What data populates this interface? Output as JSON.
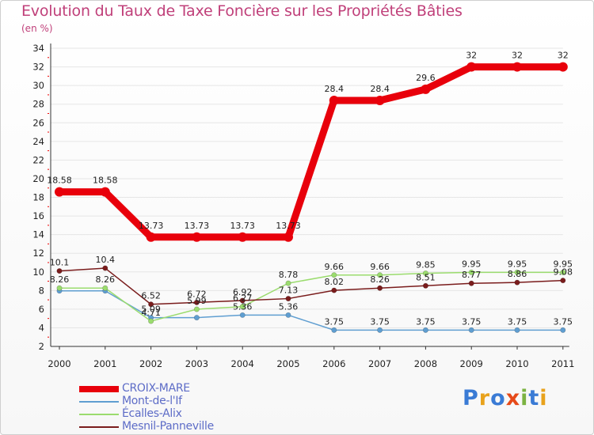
{
  "title": "Evolution du Taux de Taxe Foncière sur les Propriétés Bâties",
  "unit_label": "(en %)",
  "logo": {
    "text": "Proxiti",
    "letters": [
      {
        "ch": "P",
        "color": "#3a7bd5"
      },
      {
        "ch": "r",
        "color": "#e8a21c"
      },
      {
        "ch": "o",
        "color": "#3a7bd5"
      },
      {
        "ch": "x",
        "color": "#e64a19"
      },
      {
        "ch": "i",
        "color": "#7cb342"
      },
      {
        "ch": "t",
        "color": "#3a7bd5"
      },
      {
        "ch": "i",
        "color": "#e8a21c"
      }
    ]
  },
  "chart_data": {
    "type": "line",
    "title": "Evolution du Taux de Taxe Foncière sur les Propriétés Bâties",
    "ylabel": "(en %)",
    "xlabel": "",
    "ylim": [
      2,
      34
    ],
    "yticks": [
      "2",
      "4",
      "6",
      "8",
      "10",
      "12",
      "14",
      "16",
      "18",
      "20",
      "22",
      "24",
      "26",
      "28",
      "30",
      "32",
      "34"
    ],
    "categories": [
      "2000",
      "2001",
      "2002",
      "2003",
      "2004",
      "2005",
      "2006",
      "2007",
      "2008",
      "2009",
      "2010",
      "2011"
    ],
    "grid": "horizontal",
    "legend_position": "bottom-left",
    "series": [
      {
        "name": "CROIX-MARE",
        "color": "#e8000b",
        "values": [
          18.58,
          18.58,
          13.73,
          13.73,
          13.73,
          13.73,
          28.4,
          28.4,
          29.6,
          32,
          32,
          32
        ],
        "labels": [
          "18.58",
          "18.58",
          "13.73",
          "13.73",
          "13.73",
          "13.73",
          "28.4",
          "28.4",
          "29.6",
          "32",
          "32",
          "32"
        ]
      },
      {
        "name": "Mont-de-l'If",
        "color": "#5f9ed1",
        "values": [
          7.96,
          7.96,
          5.09,
          5.09,
          5.36,
          5.36,
          3.75,
          3.75,
          3.75,
          3.75,
          3.75,
          3.75
        ],
        "labels": [
          "",
          "",
          "5.09",
          "",
          "5.36",
          "5.36",
          "3.75",
          "3.75",
          "3.75",
          "3.75",
          "3.75",
          "3.75"
        ]
      },
      {
        "name": "Écalles-Alix",
        "color": "#9bdc6e",
        "values": [
          8.26,
          8.26,
          4.71,
          5.99,
          6.27,
          8.78,
          9.66,
          9.66,
          9.85,
          9.95,
          9.95,
          9.95
        ],
        "labels": [
          "8.26",
          "8.26",
          "4.71",
          "5.99",
          "6.27",
          "8.78",
          "9.66",
          "9.66",
          "9.85",
          "9.95",
          "9.95",
          "9.95"
        ]
      },
      {
        "name": "Mesnil-Panneville",
        "color": "#7a1c1c",
        "values": [
          10.1,
          10.4,
          6.52,
          6.72,
          6.92,
          7.13,
          8.02,
          8.26,
          8.51,
          8.77,
          8.86,
          9.08
        ],
        "labels": [
          "10.1",
          "10.4",
          "6.52",
          "6.72",
          "6.92",
          "7.13",
          "8.02",
          "8.26",
          "8.51",
          "8.77",
          "8.86",
          "9.08"
        ]
      }
    ]
  }
}
